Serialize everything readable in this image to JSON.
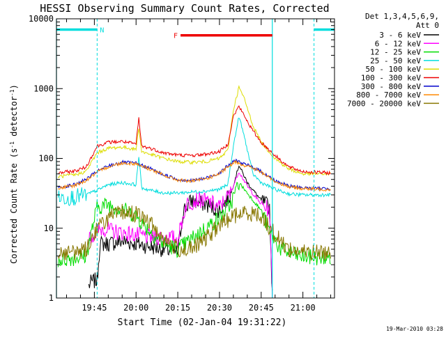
{
  "chart_data": {
    "type": "line",
    "title": "HESSI Observing Summary Count Rates, Corrected",
    "xlabel": "Start Time (02-Jan-04 19:31:22)",
    "ylabel": "Corrected Count Rate (s",
    "ylabel_sup": "-1",
    "ylabel_tail": " detector",
    "ylabel_tail_sup": "-1",
    "ylabel_close": ")",
    "y_scale": "log",
    "xlim": [
      "19:31:22",
      "21:11:22"
    ],
    "ylim": [
      1,
      10000
    ],
    "x_ticks": [
      "19:45",
      "20:00",
      "20:15",
      "20:30",
      "20:45",
      "21:00"
    ],
    "y_ticks": [
      "1",
      "10",
      "100",
      "1000",
      "10000"
    ],
    "legend": {
      "position": "right",
      "header_line1": "Det 1,3,4,5,6,9,",
      "header_line2": "Att 0"
    },
    "series": [
      {
        "name": "3 - 6 keV",
        "color": "#000000",
        "points": [
          [
            "19:43",
            1.5
          ],
          [
            "19:44",
            1.7
          ],
          [
            "19:46",
            1.8
          ],
          [
            "19:47",
            6
          ],
          [
            "19:50",
            6
          ],
          [
            "19:55",
            6.5
          ],
          [
            "20:00",
            6
          ],
          [
            "20:05",
            5.5
          ],
          [
            "20:10",
            5
          ],
          [
            "20:12",
            4.8
          ],
          [
            "20:15",
            4.5
          ],
          [
            "20:17",
            18
          ],
          [
            "20:20",
            25
          ],
          [
            "20:25",
            22
          ],
          [
            "20:30",
            18
          ],
          [
            "20:34",
            30
          ],
          [
            "20:37",
            80
          ],
          [
            "20:40",
            45
          ],
          [
            "20:45",
            25
          ],
          [
            "20:48",
            20
          ],
          [
            "20:49",
            1
          ]
        ]
      },
      {
        "name": "6 - 12 keV",
        "color": "#ff00ff",
        "points": [
          [
            "19:43",
            7
          ],
          [
            "19:46",
            9
          ],
          [
            "19:48",
            10
          ],
          [
            "19:52",
            9
          ],
          [
            "19:56",
            8.5
          ],
          [
            "20:00",
            8
          ],
          [
            "20:05",
            7.5
          ],
          [
            "20:10",
            7.5
          ],
          [
            "20:15",
            7
          ],
          [
            "20:18",
            22
          ],
          [
            "20:22",
            26
          ],
          [
            "20:26",
            24
          ],
          [
            "20:30",
            20
          ],
          [
            "20:34",
            32
          ],
          [
            "20:37",
            65
          ],
          [
            "20:40",
            40
          ],
          [
            "20:45",
            22
          ],
          [
            "20:48",
            18
          ],
          [
            "20:49",
            1
          ]
        ]
      },
      {
        "name": "12 - 25 keV",
        "color": "#00dd00",
        "points": [
          [
            "19:32",
            3.5
          ],
          [
            "19:38",
            3.8
          ],
          [
            "19:42",
            4
          ],
          [
            "19:46",
            20
          ],
          [
            "19:50",
            22
          ],
          [
            "19:55",
            19
          ],
          [
            "20:00",
            15
          ],
          [
            "20:05",
            9
          ],
          [
            "20:10",
            6
          ],
          [
            "20:15",
            5
          ],
          [
            "20:20",
            7
          ],
          [
            "20:25",
            10
          ],
          [
            "20:30",
            14
          ],
          [
            "20:34",
            22
          ],
          [
            "20:37",
            45
          ],
          [
            "20:40",
            32
          ],
          [
            "20:45",
            18
          ],
          [
            "20:48",
            9
          ],
          [
            "20:52",
            5
          ],
          [
            "20:58",
            4
          ],
          [
            "21:05",
            3.8
          ],
          [
            "21:10",
            3.8
          ]
        ]
      },
      {
        "name": "25 - 50 keV",
        "color": "#00dddd",
        "points": [
          [
            "19:32",
            27
          ],
          [
            "19:38",
            28
          ],
          [
            "19:42",
            30
          ],
          [
            "19:46",
            35
          ],
          [
            "19:50",
            42
          ],
          [
            "19:55",
            45
          ],
          [
            "20:00",
            42
          ],
          [
            "20:01",
            110
          ],
          [
            "20:02",
            38
          ],
          [
            "20:05",
            35
          ],
          [
            "20:10",
            32
          ],
          [
            "20:15",
            32
          ],
          [
            "20:20",
            33
          ],
          [
            "20:25",
            34
          ],
          [
            "20:30",
            36
          ],
          [
            "20:33",
            42
          ],
          [
            "20:35",
            150
          ],
          [
            "20:37",
            400
          ],
          [
            "20:39",
            200
          ],
          [
            "20:42",
            60
          ],
          [
            "20:45",
            45
          ],
          [
            "20:50",
            36
          ],
          [
            "20:55",
            31
          ],
          [
            "21:00",
            30
          ],
          [
            "21:05",
            30
          ],
          [
            "21:10",
            30
          ]
        ]
      },
      {
        "name": "50 - 100 keV",
        "color": "#dddd00",
        "points": [
          [
            "19:32",
            55
          ],
          [
            "19:38",
            58
          ],
          [
            "19:42",
            65
          ],
          [
            "19:46",
            120
          ],
          [
            "19:50",
            140
          ],
          [
            "19:55",
            145
          ],
          [
            "20:00",
            135
          ],
          [
            "20:01",
            280
          ],
          [
            "20:02",
            125
          ],
          [
            "20:05",
            115
          ],
          [
            "20:10",
            100
          ],
          [
            "20:15",
            90
          ],
          [
            "20:20",
            88
          ],
          [
            "20:25",
            90
          ],
          [
            "20:30",
            100
          ],
          [
            "20:33",
            130
          ],
          [
            "20:35",
            500
          ],
          [
            "20:37",
            1050
          ],
          [
            "20:39",
            700
          ],
          [
            "20:42",
            300
          ],
          [
            "20:45",
            170
          ],
          [
            "20:50",
            100
          ],
          [
            "20:55",
            70
          ],
          [
            "21:00",
            60
          ],
          [
            "21:05",
            60
          ],
          [
            "21:10",
            60
          ]
        ]
      },
      {
        "name": "100 - 300 keV",
        "color": "#ee0000",
        "points": [
          [
            "19:32",
            62
          ],
          [
            "19:38",
            66
          ],
          [
            "19:42",
            75
          ],
          [
            "19:46",
            150
          ],
          [
            "19:50",
            170
          ],
          [
            "19:55",
            175
          ],
          [
            "20:00",
            160
          ],
          [
            "20:01",
            380
          ],
          [
            "20:02",
            150
          ],
          [
            "20:05",
            140
          ],
          [
            "20:10",
            120
          ],
          [
            "20:15",
            112
          ],
          [
            "20:20",
            110
          ],
          [
            "20:25",
            115
          ],
          [
            "20:30",
            125
          ],
          [
            "20:33",
            160
          ],
          [
            "20:35",
            400
          ],
          [
            "20:37",
            560
          ],
          [
            "20:39",
            400
          ],
          [
            "20:42",
            250
          ],
          [
            "20:45",
            170
          ],
          [
            "20:50",
            110
          ],
          [
            "20:55",
            75
          ],
          [
            "21:00",
            65
          ],
          [
            "21:05",
            63
          ],
          [
            "21:10",
            62
          ]
        ]
      },
      {
        "name": "300 - 800 keV",
        "color": "#0000cc",
        "points": [
          [
            "19:32",
            38
          ],
          [
            "19:38",
            42
          ],
          [
            "19:42",
            50
          ],
          [
            "19:46",
            65
          ],
          [
            "19:50",
            78
          ],
          [
            "19:55",
            88
          ],
          [
            "20:00",
            85
          ],
          [
            "20:05",
            72
          ],
          [
            "20:10",
            58
          ],
          [
            "20:15",
            50
          ],
          [
            "20:20",
            48
          ],
          [
            "20:25",
            52
          ],
          [
            "20:30",
            62
          ],
          [
            "20:33",
            78
          ],
          [
            "20:36",
            95
          ],
          [
            "20:38",
            85
          ],
          [
            "20:42",
            75
          ],
          [
            "20:45",
            65
          ],
          [
            "20:50",
            48
          ],
          [
            "20:55",
            40
          ],
          [
            "21:00",
            38
          ],
          [
            "21:05",
            37
          ],
          [
            "21:10",
            37
          ]
        ]
      },
      {
        "name": "800 - 7000 keV",
        "color": "#ff8800",
        "points": [
          [
            "19:32",
            37
          ],
          [
            "19:38",
            41
          ],
          [
            "19:42",
            48
          ],
          [
            "19:46",
            63
          ],
          [
            "19:50",
            76
          ],
          [
            "19:55",
            86
          ],
          [
            "20:00",
            84
          ],
          [
            "20:05",
            70
          ],
          [
            "20:10",
            57
          ],
          [
            "20:15",
            49
          ],
          [
            "20:20",
            47
          ],
          [
            "20:25",
            51
          ],
          [
            "20:30",
            60
          ],
          [
            "20:33",
            75
          ],
          [
            "20:36",
            90
          ],
          [
            "20:38",
            82
          ],
          [
            "20:42",
            73
          ],
          [
            "20:45",
            63
          ],
          [
            "20:50",
            47
          ],
          [
            "20:55",
            39
          ],
          [
            "21:00",
            37
          ],
          [
            "21:05",
            36
          ],
          [
            "21:10",
            36
          ]
        ]
      },
      {
        "name": "7000 - 20000 keV",
        "color": "#887700",
        "points": [
          [
            "19:32",
            4.5
          ],
          [
            "19:38",
            4.5
          ],
          [
            "19:42",
            5
          ],
          [
            "19:46",
            10
          ],
          [
            "19:50",
            14
          ],
          [
            "19:55",
            17
          ],
          [
            "20:00",
            16
          ],
          [
            "20:05",
            12
          ],
          [
            "20:10",
            7
          ],
          [
            "20:15",
            5
          ],
          [
            "20:20",
            5
          ],
          [
            "20:25",
            7
          ],
          [
            "20:30",
            11
          ],
          [
            "20:35",
            15
          ],
          [
            "20:40",
            17
          ],
          [
            "20:45",
            15
          ],
          [
            "20:50",
            8
          ],
          [
            "20:55",
            5
          ],
          [
            "21:00",
            4.5
          ],
          [
            "21:05",
            4.5
          ],
          [
            "21:10",
            4.5
          ]
        ]
      }
    ],
    "annotations": [
      {
        "label": "N",
        "color": "#00dddd",
        "kind": "bar",
        "bars": [
          [
            "19:31:22",
            "19:46"
          ],
          [
            "21:04",
            "21:11:22"
          ]
        ],
        "y": 7000,
        "dashed_lines": [
          "19:46",
          "21:04"
        ],
        "solid_lines": [
          "19:31:22",
          "20:49"
        ]
      },
      {
        "label": "F",
        "color": "#ee0000",
        "kind": "bar",
        "bars": [
          [
            "20:16",
            "20:49"
          ]
        ],
        "y": 5800
      }
    ]
  },
  "footer": {
    "timestamp": "19-Mar-2010 03:28"
  }
}
